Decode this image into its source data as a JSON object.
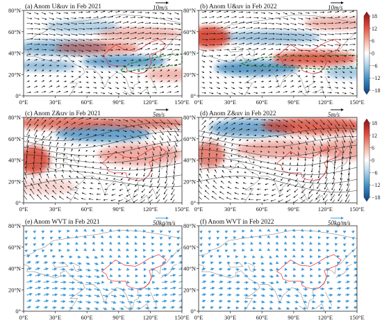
{
  "panels": [
    {
      "id": "a",
      "title": "(a) Anom U&uv in Feb 2021",
      "ref": "10m/s",
      "kind": "U",
      "year": 2021
    },
    {
      "id": "b",
      "title": "(b) Anom U&uv in Feb 2022",
      "ref": "10m/s",
      "kind": "U",
      "year": 2022
    },
    {
      "id": "c",
      "title": "(c) Anom Z&uv in Feb 2021",
      "ref": "5m/s",
      "kind": "Z",
      "year": 2021
    },
    {
      "id": "d",
      "title": "(d) Anom Z&uv in Feb 2022",
      "ref": "5m/s",
      "kind": "Z",
      "year": 2022
    },
    {
      "id": "e",
      "title": "(e) Anom WVT in Feb 2021",
      "ref": "50kg/m/s",
      "kind": "W",
      "year": 2021
    },
    {
      "id": "f",
      "title": "(f) Anom WVT in Feb 2022",
      "ref": "50kg/m/s",
      "kind": "W",
      "year": 2022
    }
  ],
  "lat_ticks": [
    "0°",
    "20°N",
    "40°N",
    "60°N",
    "80°N"
  ],
  "lon_ticks": [
    "0°E",
    "30°E",
    "60°E",
    "90°E",
    "120°E",
    "150°E"
  ],
  "colorbar_labels": [
    "18",
    "12",
    "6",
    "0",
    "−6",
    "−12",
    "−18"
  ],
  "colors": {
    "positive": "#d7301f",
    "negative": "#2c7bb6",
    "vector": "#111111",
    "wvt_vector": "#3a9ad9",
    "coast": "#8a8a8a",
    "china_border": "#e8262c",
    "jet_contour": "#1f8a2a"
  }
}
